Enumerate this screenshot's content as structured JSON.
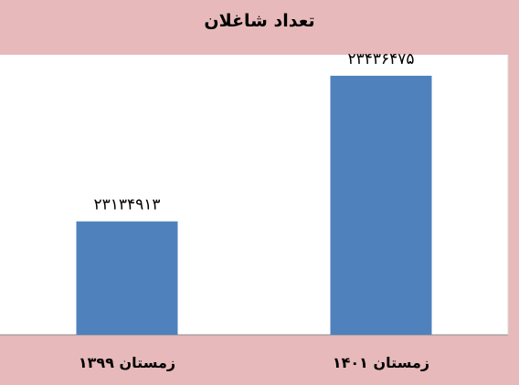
{
  "chart_data": {
    "type": "bar",
    "title": "تعداد شاغلان",
    "categories": [
      "زمستان ۱۳۹۹",
      "زمستان ۱۴۰۱"
    ],
    "values": [
      23134913,
      23436475
    ],
    "value_labels": [
      "۲۳۱۳۴۹۱۳",
      "۲۳۴۳۶۴۷۵"
    ],
    "xlabel": "",
    "ylabel": "",
    "ylim": [
      22900000,
      23480000
    ],
    "grid": false,
    "legend": "none",
    "colors": {
      "background": "#e7b9ba",
      "plot_background": "#ffffff",
      "bar": "#4f81bd"
    }
  }
}
